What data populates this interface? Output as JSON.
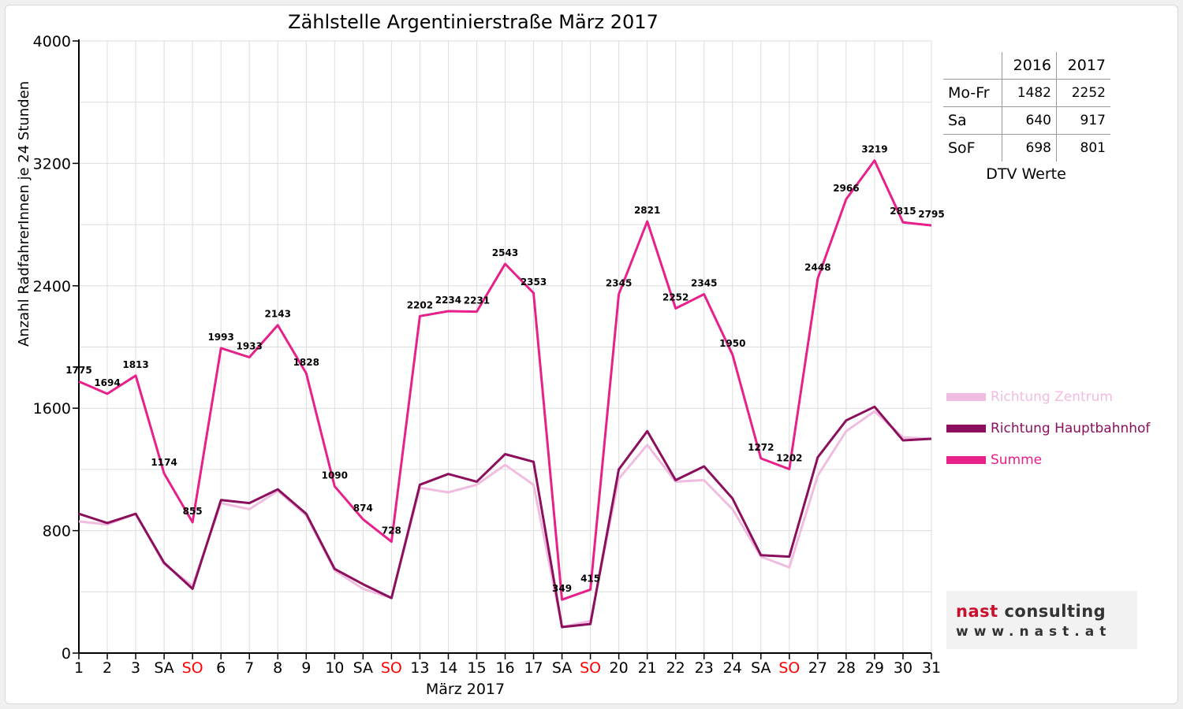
{
  "title": "Zählstelle Argentinierstraße März 2017",
  "chart_data": {
    "type": "line",
    "title": "Zählstelle Argentinierstraße März 2017",
    "xlabel": "März 2017",
    "ylabel": "Anzahl RadfahrerInnen je 24 Stunden",
    "ylim": [
      0,
      4000
    ],
    "yticks": [
      "0",
      "800",
      "1600",
      "2400",
      "3200",
      "4000"
    ],
    "grid": true,
    "legend_position": "right",
    "categories": [
      "1",
      "2",
      "3",
      "SA",
      "SO",
      "6",
      "7",
      "8",
      "9",
      "10",
      "SA",
      "SO",
      "13",
      "14",
      "15",
      "16",
      "17",
      "SA",
      "SO",
      "20",
      "21",
      "22",
      "23",
      "24",
      "SA",
      "SO",
      "27",
      "28",
      "29",
      "30",
      "31"
    ],
    "sunday_color": "#ff0000",
    "series": [
      {
        "name": "Richtung Zentrum",
        "color": "#f0bde0",
        "values": [
          860,
          840,
          910,
          580,
          440,
          980,
          940,
          1060,
          900,
          540,
          420,
          360,
          1080,
          1050,
          1100,
          1230,
          1100,
          170,
          210,
          1140,
          1360,
          1120,
          1130,
          940,
          630,
          560,
          1160,
          1450,
          1580,
          1410,
          1400
        ]
      },
      {
        "name": "Richtung Hauptbahnhof",
        "color": "#8b0f5c",
        "values": [
          910,
          850,
          910,
          590,
          420,
          1000,
          980,
          1070,
          910,
          550,
          450,
          360,
          1100,
          1170,
          1120,
          1300,
          1250,
          170,
          190,
          1200,
          1450,
          1130,
          1220,
          1010,
          640,
          630,
          1280,
          1520,
          1610,
          1390,
          1400
        ]
      },
      {
        "name": "Summe",
        "color": "#e8208a",
        "values": [
          1775,
          1694,
          1813,
          1174,
          855,
          1993,
          1933,
          2143,
          1828,
          1090,
          874,
          728,
          2202,
          2234,
          2231,
          2543,
          2353,
          349,
          415,
          2345,
          2821,
          2252,
          2345,
          1950,
          1272,
          1202,
          2448,
          2966,
          3219,
          2815,
          2795
        ]
      }
    ],
    "data_labels": [
      "1775",
      "1694",
      "1813",
      "1174",
      "855",
      "1993",
      "1933",
      "2143",
      "1828",
      "1090",
      "874",
      "728",
      "2202",
      "2234",
      "2231",
      "2543",
      "2353",
      "349",
      "415",
      "2345",
      "2821",
      "2252",
      "2345",
      "1950",
      "1272",
      "1202",
      "2448",
      "2966",
      "3219",
      "2815",
      "2795"
    ]
  },
  "dtv_table": {
    "headers": [
      "",
      "2016",
      "2017"
    ],
    "rows": [
      {
        "label": "Mo-Fr",
        "v2016": "1482",
        "v2017": "2252"
      },
      {
        "label": "Sa",
        "v2016": "640",
        "v2017": "917"
      },
      {
        "label": "SoF",
        "v2016": "698",
        "v2017": "801"
      }
    ],
    "title": "DTV Werte"
  },
  "legend": [
    {
      "label": "Richtung Zentrum",
      "color": "#f0bde0"
    },
    {
      "label": "Richtung Hauptbahnhof",
      "color": "#8b0f5c"
    },
    {
      "label": "Summe",
      "color": "#e8208a"
    }
  ],
  "logo": {
    "name_part1": "nast",
    "name_part2": " consulting",
    "url": "www.nast.at"
  }
}
